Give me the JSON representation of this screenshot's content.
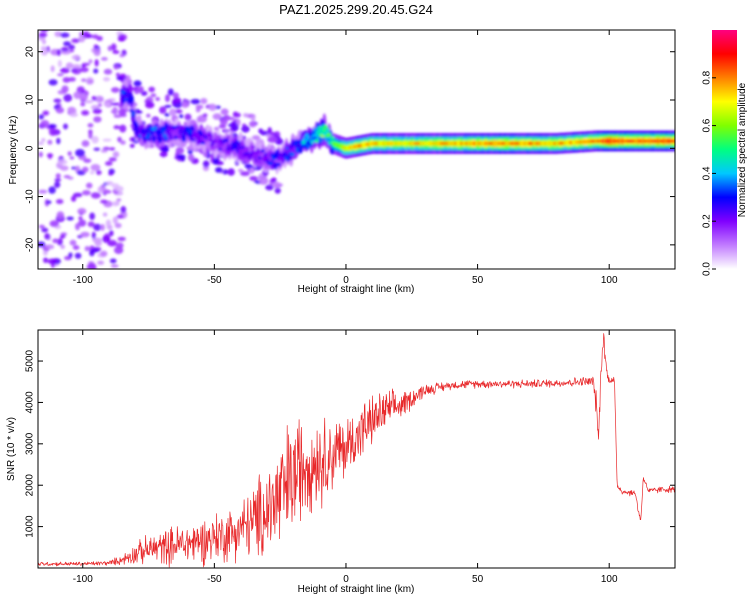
{
  "chart_data": [
    {
      "type": "heatmap",
      "title": "PAZ1.2025.299.20.45.G24",
      "xlabel": "Height of straight line (km)",
      "ylabel": "Frequency (Hz)",
      "xlim": [
        -117,
        125
      ],
      "ylim": [
        -25,
        24.5
      ],
      "x_ticks": [
        -100,
        -50,
        0,
        50,
        100
      ],
      "y_ticks": [
        -20,
        -10,
        0,
        10,
        20
      ],
      "colorbar": {
        "label": "Normalized spectral amplitude",
        "range": [
          0,
          1
        ],
        "ticks": [
          "0.0",
          "0.2",
          "0.4",
          "0.6",
          "0.8"
        ],
        "colors": [
          "#ffffff",
          "#c17bff",
          "#8000ff",
          "#0000ff",
          "#00c8ff",
          "#00ff80",
          "#80ff00",
          "#ffff00",
          "#ff8000",
          "#ff0000",
          "#ff0080"
        ]
      },
      "ridge": {
        "description": "dominant frequency trace vs height",
        "x": [
          -85,
          -82,
          -80,
          -75,
          -70,
          -65,
          -60,
          -55,
          -50,
          -45,
          -40,
          -35,
          -30,
          -27,
          -25,
          -22,
          -20,
          -15,
          -12,
          -10,
          -8,
          -5,
          0,
          5,
          10,
          20,
          40,
          60,
          80,
          95,
          100,
          110,
          120,
          125
        ],
        "frequency": [
          11,
          11,
          4,
          3,
          3,
          3.5,
          3,
          2.5,
          1,
          0.5,
          0,
          -1,
          -2,
          -2.5,
          -2,
          -1,
          0,
          1.5,
          2.5,
          3,
          4,
          1,
          0,
          0.5,
          1,
          1,
          1,
          1,
          1,
          1.5,
          1.5,
          1.5,
          1.5,
          1.5
        ],
        "amplitude": [
          0.3,
          0.35,
          0.3,
          0.3,
          0.35,
          0.25,
          0.3,
          0.25,
          0.2,
          0.25,
          0.25,
          0.2,
          0.25,
          0.3,
          0.25,
          0.3,
          0.3,
          0.4,
          0.45,
          0.5,
          0.55,
          0.55,
          0.7,
          0.75,
          0.75,
          0.7,
          0.75,
          0.8,
          0.75,
          0.8,
          0.9,
          0.85,
          0.85,
          0.85
        ]
      }
    },
    {
      "type": "line",
      "xlabel": "Height of straight line (km)",
      "ylabel": "SNR (10 * v/v)",
      "xlim": [
        -117,
        125
      ],
      "ylim": [
        0,
        5750
      ],
      "x_ticks": [
        -100,
        -50,
        0,
        50,
        100
      ],
      "y_ticks": [
        1000,
        2000,
        3000,
        4000,
        5000
      ],
      "color": "#e8282a",
      "series": [
        {
          "name": "SNR",
          "x": [
            -117,
            -100,
            -90,
            -85,
            -80,
            -75,
            -70,
            -65,
            -60,
            -55,
            -50,
            -45,
            -40,
            -35,
            -30,
            -25,
            -20,
            -15,
            -10,
            -5,
            0,
            5,
            10,
            15,
            20,
            25,
            30,
            40,
            50,
            60,
            70,
            80,
            90,
            94,
            95,
            96,
            97,
            98,
            99,
            100,
            101,
            102,
            103,
            105,
            110,
            111,
            112,
            113,
            115,
            120,
            125
          ],
          "mean": [
            100,
            100,
            120,
            200,
            350,
            450,
            500,
            550,
            600,
            650,
            750,
            800,
            950,
            1100,
            1400,
            1700,
            2200,
            2600,
            2600,
            2750,
            2900,
            3250,
            3550,
            3800,
            3900,
            4100,
            4300,
            4420,
            4450,
            4450,
            4450,
            4470,
            4500,
            4500,
            4000,
            3100,
            5000,
            5600,
            4700,
            4550,
            4550,
            4550,
            2000,
            1850,
            1800,
            1400,
            1150,
            2200,
            1850,
            1900,
            1900
          ],
          "noise": [
            50,
            50,
            60,
            120,
            250,
            350,
            420,
            480,
            520,
            560,
            600,
            650,
            700,
            900,
            1200,
            1500,
            1500,
            1200,
            1100,
            900,
            800,
            700,
            600,
            500,
            350,
            250,
            150,
            100,
            100,
            100,
            100,
            100,
            120,
            150,
            300,
            300,
            300,
            300,
            200,
            100,
            100,
            100,
            100,
            80,
            80,
            80,
            80,
            80,
            80,
            80,
            80
          ]
        }
      ]
    }
  ]
}
